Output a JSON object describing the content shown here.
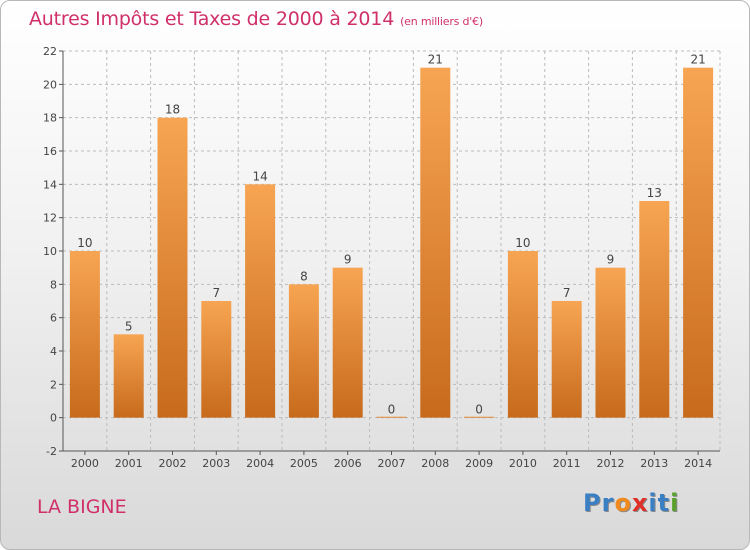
{
  "header": {
    "title": "Autres Impôts et Taxes de 2000 à 2014",
    "unit": "(en milliers d'€)"
  },
  "footer": {
    "place": "LA BIGNE",
    "logo_letters": [
      "P",
      "r",
      "o",
      "x",
      "i",
      "t",
      "i"
    ],
    "logo_colors": [
      "#3a7fc4",
      "#3a7fc4",
      "#f08a1c",
      "#e0302a",
      "#3a7fc4",
      "#3a7fc4",
      "#5aa02c"
    ]
  },
  "colors": {
    "title": "#d0306a",
    "bar_top": "#f7a552",
    "bar_bottom": "#c76a1c",
    "grid": "#bcbcbc"
  },
  "chart_data": {
    "type": "bar",
    "categories": [
      "2000",
      "2001",
      "2002",
      "2003",
      "2004",
      "2005",
      "2006",
      "2007",
      "2008",
      "2009",
      "2010",
      "2011",
      "2012",
      "2013",
      "2014"
    ],
    "values": [
      10,
      5,
      18,
      7,
      14,
      8,
      9,
      0,
      21,
      0,
      10,
      7,
      9,
      13,
      21
    ],
    "ylim": [
      -2,
      22
    ],
    "yticks": [
      -2,
      0,
      2,
      4,
      6,
      8,
      10,
      12,
      14,
      16,
      18,
      20,
      22
    ],
    "grid": true,
    "data_labels": true
  }
}
